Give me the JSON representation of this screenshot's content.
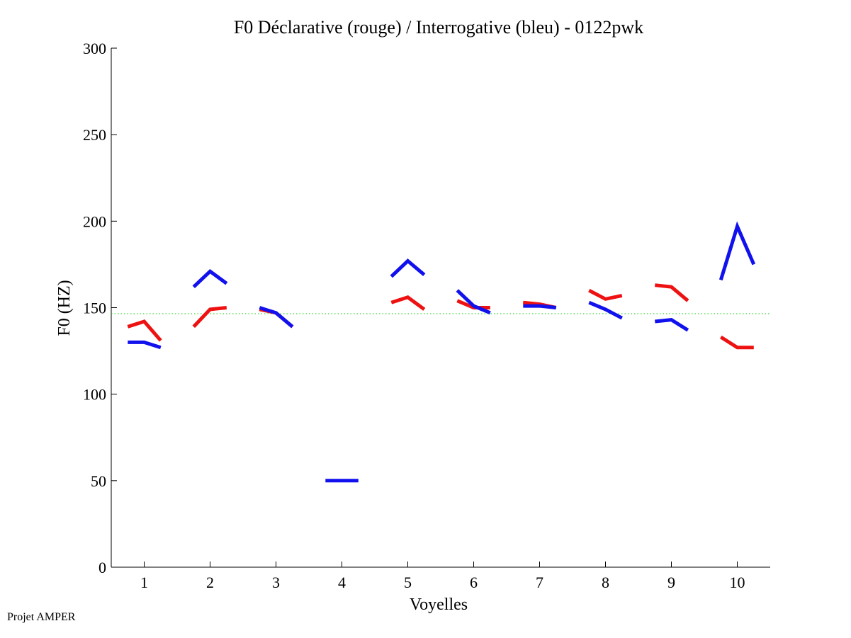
{
  "footer": "Projet AMPER",
  "chart_data": {
    "type": "line",
    "title": "F0 Déclarative (rouge) / Interrogative (bleu) - 0122pwk",
    "xlabel": "Voyelles",
    "ylabel": "F0 (HZ)",
    "xlim": [
      0.5,
      10.5
    ],
    "ylim": [
      0,
      300
    ],
    "xticks": [
      1,
      2,
      3,
      4,
      5,
      6,
      7,
      8,
      9,
      10
    ],
    "yticks": [
      0,
      50,
      100,
      150,
      200,
      250,
      300
    ],
    "reference_line": {
      "y": 146.5,
      "color": "#00cc00",
      "style": "dotted"
    },
    "grid": false,
    "series": [
      {
        "color": "#ee1111",
        "segments": [
          {
            "vowel": 1,
            "x": [
              0.75,
              1.0,
              1.25
            ],
            "y": [
              139,
              142,
              131
            ]
          },
          {
            "vowel": 2,
            "x": [
              0.75,
              1.0,
              1.25
            ],
            "y": [
              139,
              149,
              150
            ]
          },
          {
            "vowel": 3,
            "x": [
              0.75,
              1.0,
              1.25
            ],
            "y": [
              149,
              147,
              139
            ]
          },
          {
            "vowel": 5,
            "x": [
              0.75,
              1.0,
              1.25
            ],
            "y": [
              153,
              156,
              149
            ]
          },
          {
            "vowel": 6,
            "x": [
              0.75,
              1.0,
              1.25
            ],
            "y": [
              154,
              150,
              150
            ]
          },
          {
            "vowel": 7,
            "x": [
              0.75,
              1.0,
              1.25
            ],
            "y": [
              153,
              152,
              150
            ]
          },
          {
            "vowel": 8,
            "x": [
              0.75,
              1.0,
              1.25
            ],
            "y": [
              160,
              155,
              157
            ]
          },
          {
            "vowel": 9,
            "x": [
              0.75,
              1.0,
              1.25
            ],
            "y": [
              163,
              162,
              154
            ]
          },
          {
            "vowel": 10,
            "x": [
              0.75,
              1.0,
              1.25
            ],
            "y": [
              133,
              127,
              127
            ]
          }
        ]
      },
      {
        "color": "#1111ee",
        "segments": [
          {
            "vowel": 1,
            "x": [
              0.75,
              1.0,
              1.25
            ],
            "y": [
              130,
              130,
              127
            ]
          },
          {
            "vowel": 2,
            "x": [
              0.75,
              1.0,
              1.25
            ],
            "y": [
              162,
              171,
              164
            ]
          },
          {
            "vowel": 3,
            "x": [
              0.75,
              1.0,
              1.25
            ],
            "y": [
              150,
              147,
              139
            ]
          },
          {
            "vowel": 4,
            "x": [
              0.75,
              1.0,
              1.25
            ],
            "y": [
              50,
              50,
              50
            ]
          },
          {
            "vowel": 5,
            "x": [
              0.75,
              1.0,
              1.25
            ],
            "y": [
              168,
              177,
              169
            ]
          },
          {
            "vowel": 6,
            "x": [
              0.75,
              1.0,
              1.25
            ],
            "y": [
              160,
              151,
              147
            ]
          },
          {
            "vowel": 7,
            "x": [
              0.75,
              1.0,
              1.25
            ],
            "y": [
              151,
              151,
              150
            ]
          },
          {
            "vowel": 8,
            "x": [
              0.75,
              1.0,
              1.25
            ],
            "y": [
              153,
              149,
              144
            ]
          },
          {
            "vowel": 9,
            "x": [
              0.75,
              1.0,
              1.25
            ],
            "y": [
              142,
              143,
              137
            ]
          },
          {
            "vowel": 10,
            "x": [
              0.75,
              1.0,
              1.25
            ],
            "y": [
              166,
              197,
              175
            ]
          }
        ]
      }
    ]
  }
}
